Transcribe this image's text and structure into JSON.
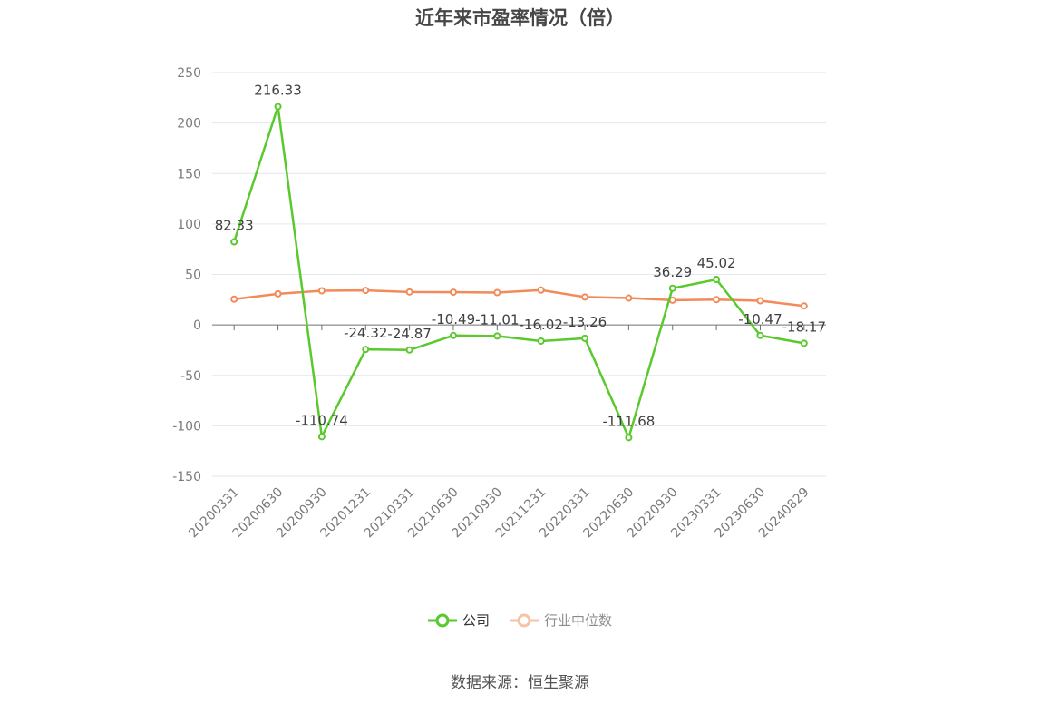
{
  "chart_data": {
    "type": "line",
    "title": "近年来市盈率情况（倍）",
    "categories": [
      "20200331",
      "20200630",
      "20200930",
      "20201231",
      "20210331",
      "20210630",
      "20210930",
      "20211231",
      "20220331",
      "20220630",
      "20220930",
      "20230331",
      "20230630",
      "20240829"
    ],
    "series": [
      {
        "name": "公司",
        "color": "#5ac92e",
        "values": [
          82.33,
          216.33,
          -110.74,
          -24.32,
          -24.87,
          -10.49,
          -11.01,
          -16.02,
          -13.26,
          -111.68,
          36.29,
          45.02,
          -10.47,
          -18.17
        ],
        "labels": [
          "82.33",
          "216.33",
          "-110.74",
          "-24.32",
          "-24.87",
          "-10.49",
          "-11.01",
          "-16.02",
          "-13.26",
          "-111.68",
          "36.29",
          "45.02",
          "-10.47",
          "-18.17"
        ]
      },
      {
        "name": "行业中位数",
        "color": "#f28a5a",
        "values": [
          25.5,
          30.8,
          33.8,
          34.2,
          32.6,
          32.4,
          32.0,
          34.5,
          27.6,
          26.6,
          24.5,
          25.1,
          23.9,
          18.8
        ]
      }
    ],
    "ylim": [
      -150,
      250
    ],
    "yticks": [
      -150,
      -100,
      -50,
      0,
      50,
      100,
      150,
      200,
      250
    ],
    "grid": true,
    "legend_position": "bottom"
  },
  "legend": {
    "company": "公司",
    "industry": "行业中位数"
  },
  "source": "数据来源：恒生聚源"
}
